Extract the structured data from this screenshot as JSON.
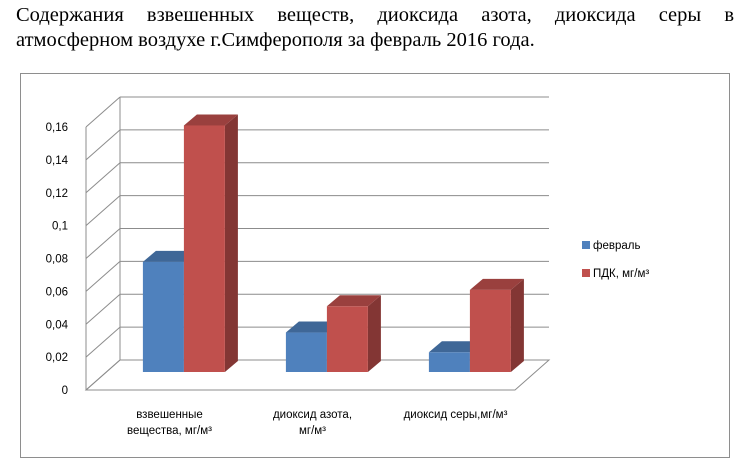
{
  "document": {
    "title_line1": "Содержания  взвешенных  веществ,  диоксида  азота,  диоксида  серы  в",
    "title_line2": "атмосферном воздухе г.Симферополя за февраль 2016 года."
  },
  "chart_data": {
    "type": "bar",
    "style": "3d-clustered-column",
    "categories": [
      "взвешенные вещества, мг/м³",
      "диоксид азота, мг/м³",
      "диоксид серы,мг/м³"
    ],
    "category_lines": [
      [
        "взвешенные",
        "вещества, мг/м³"
      ],
      [
        "диоксид азота,",
        "мг/м³"
      ],
      [
        "диоксид серы,мг/м³"
      ]
    ],
    "series": [
      {
        "name": "февраль",
        "values": [
          0.067,
          0.024,
          0.012
        ],
        "color": "#4f81bd"
      },
      {
        "name": "ПДК, мг/м³",
        "values": [
          0.15,
          0.04,
          0.05
        ],
        "color": "#c0504d"
      }
    ],
    "y_ticks": [
      "0",
      "0,02",
      "0,04",
      "0,06",
      "0,08",
      "0,1",
      "0,12",
      "0,14",
      "0,16"
    ],
    "ylim": [
      0,
      0.16
    ],
    "grid": true,
    "legend_position": "right"
  }
}
